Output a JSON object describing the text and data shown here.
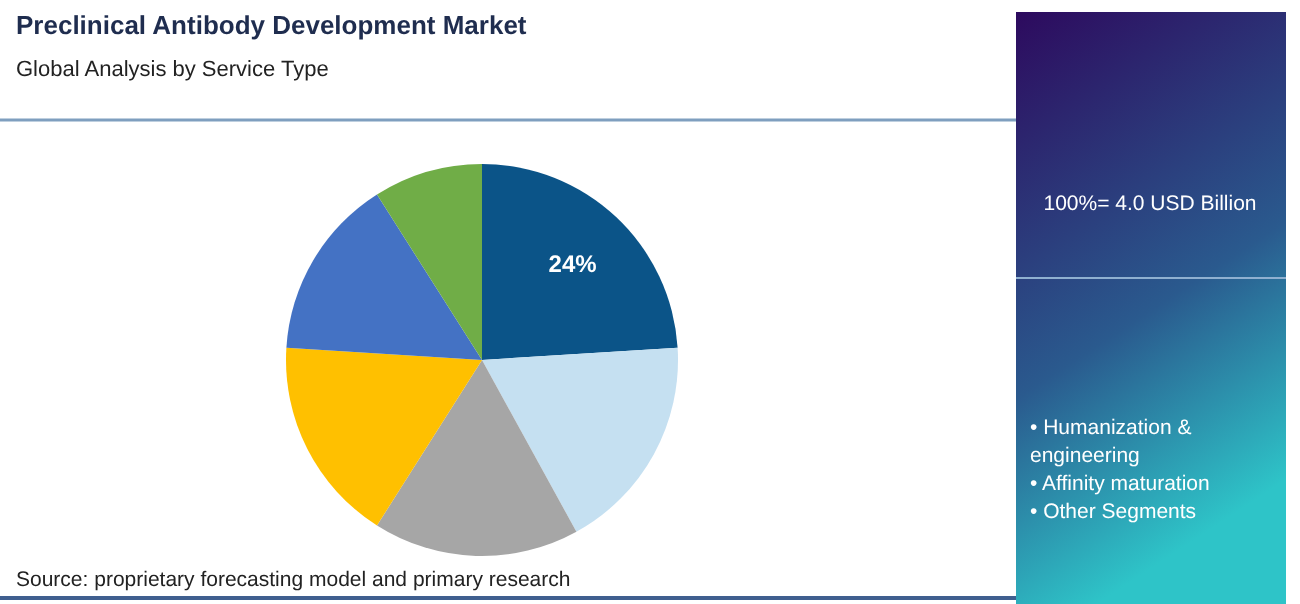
{
  "chart_data": {
    "type": "pie",
    "title": "Preclinical Antibody Development Market",
    "subtitle": "Global Analysis by Service Type",
    "categories": [
      null,
      null,
      null,
      null,
      null,
      null
    ],
    "values": [
      24,
      18,
      17,
      17,
      15,
      9
    ],
    "colors": [
      "#0b5488",
      "#c5e0f1",
      "#a6a6a6",
      "#ffc000",
      "#4472c4",
      "#70ad47"
    ],
    "value_labels": [
      "24%",
      null,
      null,
      null,
      null,
      null
    ],
    "annotations": [
      "100%= 4.0 USD Billion",
      "• Humanization & engineering",
      "• Affinity maturation",
      "• Other Segments",
      "Source: proprietary forecasting model and primary research"
    ]
  }
}
